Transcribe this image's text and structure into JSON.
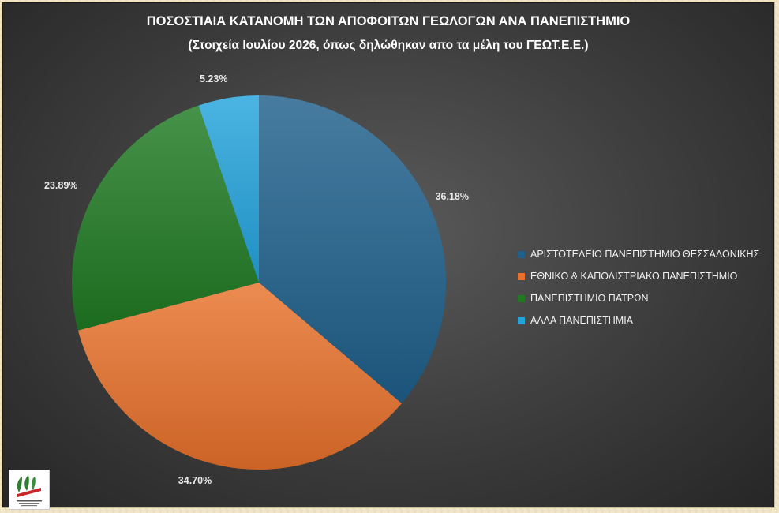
{
  "chart_data": {
    "type": "pie",
    "title": "ΠΟΣΟΣΤΙΑΙΑ ΚΑΤΑΝΟΜΗ ΤΩΝ ΑΠΟΦΟΙΤΩΝ ΓΕΩΛΟΓΩΝ ΑΝΑ ΠΑΝΕΠΙΣΤΗΜΙΟ",
    "subtitle": "(Στοιχεία Ιουλίου 2026, όπως δηλώθηκαν απο τα μέλη του ΓΕΩΤ.Ε.Ε.)",
    "start_angle_deg": 0,
    "direction": "clockwise",
    "legend_position": "right",
    "slices": [
      {
        "label": "ΑΡΙΣΤΟΤΕΛΕΙΟ ΠΑΝΕΠΙΣΤΗΜΙΟ ΘΕΣΣΑΛΟΝΙΚΗΣ",
        "value": 36.18,
        "value_label": "36.18%",
        "color": "#1f5f8b"
      },
      {
        "label": "ΕΘΝΙΚΟ & ΚΑΠΟΔΙΣΤΡΙΑΚΟ ΠΑΝΕΠΙΣΤΗΜΙΟ",
        "value": 34.7,
        "value_label": "34.70%",
        "color": "#e8712b"
      },
      {
        "label": "ΠΑΝΕΠΙΣΤΗΜΙΟ ΠΑΤΡΩΝ",
        "value": 23.89,
        "value_label": "23.89%",
        "color": "#1f7a22"
      },
      {
        "label": "ΑΛΛΑ ΠΑΝΕΠΙΣΤΗΜΙΑ",
        "value": 5.23,
        "value_label": "5.23%",
        "color": "#23a3dc"
      }
    ]
  },
  "logo": {
    "icon": "organization-logo",
    "colors": [
      "#2f7d32",
      "#c62828"
    ]
  }
}
